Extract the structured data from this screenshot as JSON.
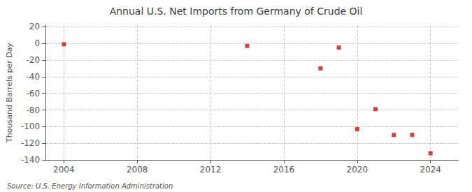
{
  "chart_data": {
    "type": "scatter",
    "title": "Annual U.S. Net Imports from Germany of Crude Oil",
    "ylabel": "Thousand Barrels per Day",
    "source": "Source: U.S. Energy Information Administration",
    "x": [
      2004,
      2014,
      2018,
      2019,
      2020,
      2021,
      2022,
      2023,
      2024
    ],
    "values": [
      -1.0,
      -3.0,
      -30.0,
      -5.0,
      -103.0,
      -79.0,
      -110.0,
      -110.0,
      -132.0
    ],
    "color": "#cc1111",
    "marker": "square",
    "xlim": [
      2003.0,
      2025.5
    ],
    "ylim": [
      -140,
      22
    ],
    "xticks": [
      2004,
      2008,
      2012,
      2016,
      2020,
      2024
    ],
    "yticks": [
      20,
      0,
      -20,
      -40,
      -60,
      -80,
      -100,
      -120,
      -140
    ],
    "grid": true
  }
}
